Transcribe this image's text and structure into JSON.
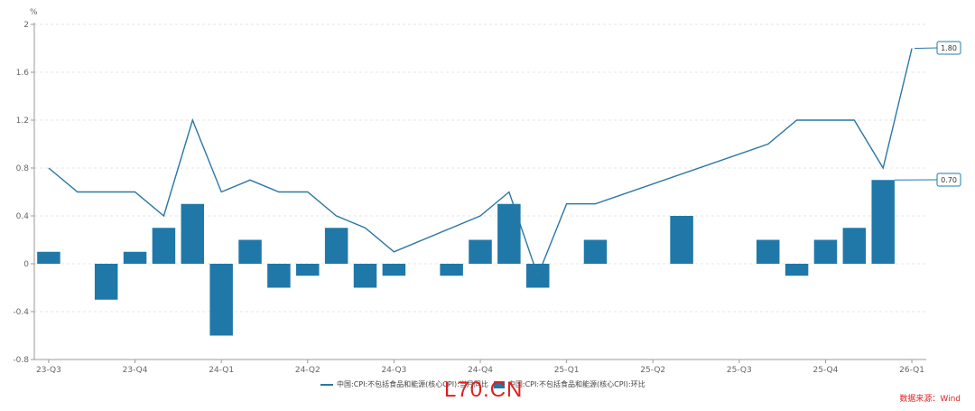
{
  "chart_data": {
    "type": "bar",
    "unit": "%",
    "ylim": [
      -0.8,
      2
    ],
    "yticks": [
      "2",
      "1.6",
      "1.2",
      "0.8",
      "0.4",
      "0",
      "-0.4",
      "-0.8"
    ],
    "x_tick_labels": [
      "23-Q3",
      "23-Q4",
      "24-Q1",
      "24-Q2",
      "24-Q3",
      "24-Q4",
      "25-Q1",
      "25-Q2",
      "25-Q3",
      "25-Q4",
      "26-Q1"
    ],
    "grid": true,
    "series": [
      {
        "name": "中国:CPI:不包括食品和能源(核心CPI):当月同比",
        "type": "line",
        "color": "#2a77a5",
        "points": [
          {
            "i": 0,
            "v": 0.8
          },
          {
            "i": 1,
            "v": 0.6
          },
          {
            "i": 2,
            "v": 0.6
          },
          {
            "i": 3,
            "v": 0.6
          },
          {
            "i": 4,
            "v": 0.4
          },
          {
            "i": 5,
            "v": 1.2
          },
          {
            "i": 6,
            "v": 0.6
          },
          {
            "i": 7,
            "v": 0.7
          },
          {
            "i": 8,
            "v": 0.6
          },
          {
            "i": 9,
            "v": 0.6
          },
          {
            "i": 10,
            "v": 0.4
          },
          {
            "i": 11,
            "v": 0.3
          },
          {
            "i": 12,
            "v": 0.1
          },
          {
            "i": 15,
            "v": 0.4
          },
          {
            "i": 16,
            "v": 0.6
          },
          {
            "i": 17,
            "v": -0.1
          },
          {
            "i": 18,
            "v": 0.5
          },
          {
            "i": 19,
            "v": 0.5
          },
          {
            "i": 25,
            "v": 1.0
          },
          {
            "i": 26,
            "v": 1.2
          },
          {
            "i": 28,
            "v": 1.2
          },
          {
            "i": 29,
            "v": 0.8
          },
          {
            "i": 30,
            "v": 1.8
          }
        ],
        "last_label": "1.80"
      },
      {
        "name": "中国:CPI:不包括食品和能源(核心CPI):环比",
        "type": "bar",
        "color": "#1f78a8",
        "points": [
          {
            "i": 0,
            "v": 0.1
          },
          {
            "i": 2,
            "v": -0.3
          },
          {
            "i": 3,
            "v": 0.1
          },
          {
            "i": 4,
            "v": 0.3
          },
          {
            "i": 5,
            "v": 0.5
          },
          {
            "i": 6,
            "v": -0.6
          },
          {
            "i": 7,
            "v": 0.2
          },
          {
            "i": 8,
            "v": -0.2
          },
          {
            "i": 9,
            "v": -0.1
          },
          {
            "i": 10,
            "v": 0.3
          },
          {
            "i": 11,
            "v": -0.2
          },
          {
            "i": 12,
            "v": -0.1
          },
          {
            "i": 14,
            "v": -0.1
          },
          {
            "i": 15,
            "v": 0.2
          },
          {
            "i": 16,
            "v": 0.5
          },
          {
            "i": 17,
            "v": -0.2
          },
          {
            "i": 19,
            "v": 0.2
          },
          {
            "i": 22,
            "v": 0.4
          },
          {
            "i": 25,
            "v": 0.2
          },
          {
            "i": 26,
            "v": -0.1
          },
          {
            "i": 27,
            "v": 0.2
          },
          {
            "i": 28,
            "v": 0.3
          },
          {
            "i": 29,
            "v": 0.7
          }
        ],
        "last_label": "0.70"
      }
    ]
  },
  "legend": {
    "line_label": "中国:CPI:不包括食品和能源(核心CPI):当月同比",
    "bar_label": "中国:CPI:不包括食品和能源(核心CPI):环比"
  },
  "watermark": "L70.CN",
  "source": "数据来源：Wind"
}
